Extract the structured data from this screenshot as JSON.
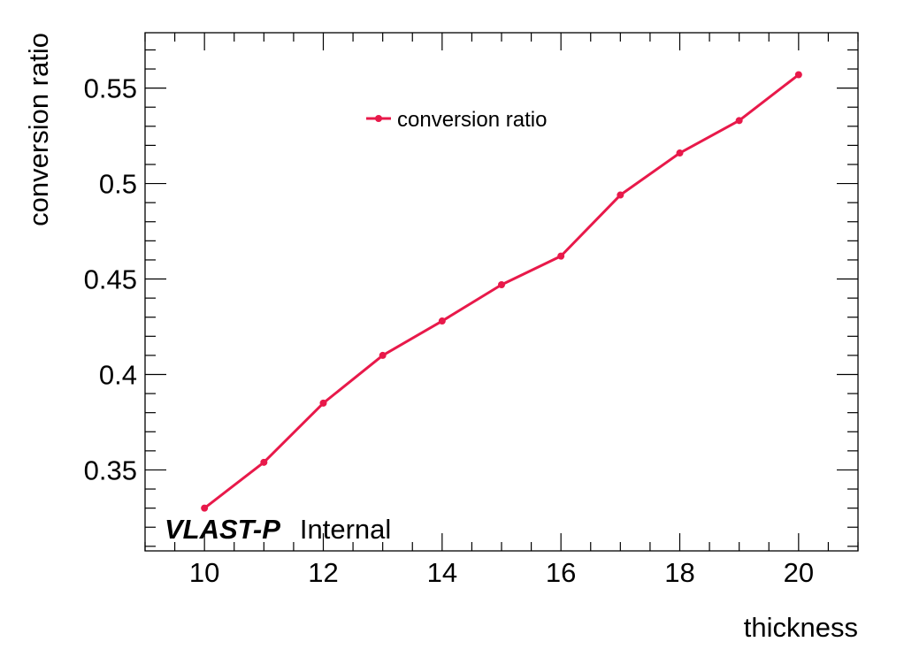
{
  "chart_data": {
    "type": "line",
    "xlabel": "thickness",
    "ylabel": "conversion ratio",
    "xlim": [
      9,
      21
    ],
    "ylim": [
      0.3076,
      0.579
    ],
    "x_ticks": [
      10,
      12,
      14,
      16,
      18,
      20
    ],
    "y_ticks": [
      0.35,
      0.4,
      0.45,
      0.5,
      0.55
    ],
    "y_tick_labels": [
      "0.35",
      "0.4",
      "0.45",
      "0.5",
      "0.55"
    ],
    "grid": false,
    "legend_position": "top-center",
    "series": [
      {
        "name": "conversion ratio",
        "color": "#e8194a",
        "x": [
          10,
          11,
          12,
          13,
          14,
          15,
          16,
          17,
          18,
          19,
          20
        ],
        "y": [
          0.33,
          0.354,
          0.385,
          0.41,
          0.428,
          0.447,
          0.462,
          0.494,
          0.516,
          0.533,
          0.557
        ]
      }
    ],
    "annotation": {
      "bold": "VLAST-P",
      "normal": "Internal"
    }
  }
}
